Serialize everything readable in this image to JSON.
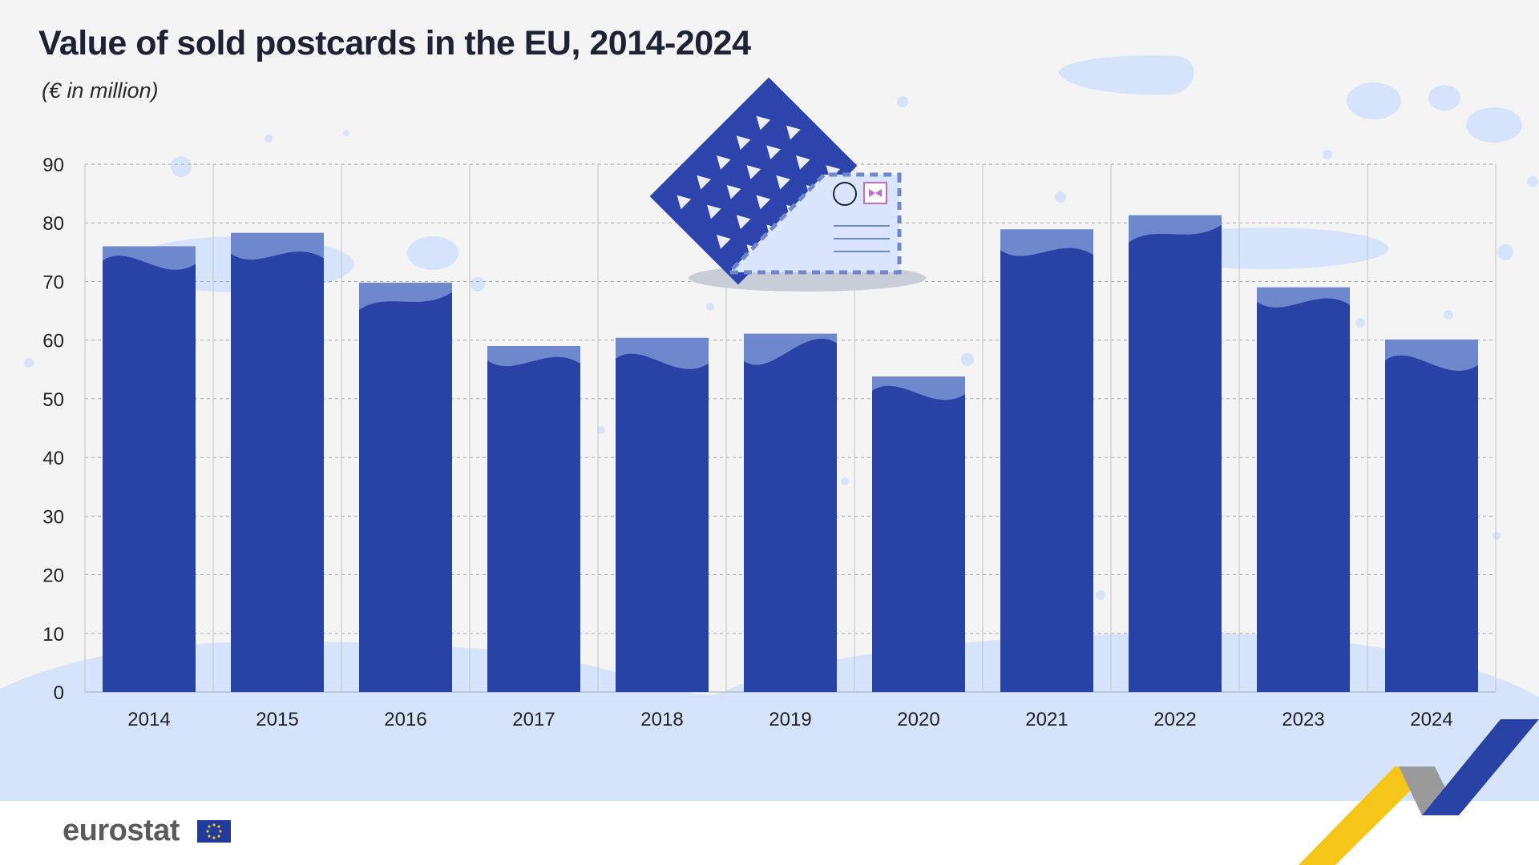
{
  "title": "Value of sold postcards in the EU, 2014-2024",
  "subtitle": "(€ in million)",
  "logo_text": "eurostat",
  "colors": {
    "bar": "#2842a6",
    "bar_top": "#6f87cc",
    "grid": "#a8a8a8",
    "background": "#f4f4f4",
    "ground": "#d6e4fb"
  },
  "chart_data": {
    "type": "bar",
    "title": "Value of sold postcards in the EU, 2014-2024",
    "subtitle": "(€ in million)",
    "xlabel": "",
    "ylabel": "",
    "categories": [
      "2014",
      "2015",
      "2016",
      "2017",
      "2018",
      "2019",
      "2020",
      "2021",
      "2022",
      "2023",
      "2024"
    ],
    "values": [
      76,
      78.3,
      69.8,
      59,
      60.4,
      61.1,
      53.8,
      78.9,
      81.3,
      69,
      60.1
    ],
    "ylim": [
      0,
      90
    ],
    "yticks": [
      0,
      10,
      20,
      30,
      40,
      50,
      60,
      70,
      80,
      90
    ],
    "grid": true,
    "legend": "none"
  }
}
